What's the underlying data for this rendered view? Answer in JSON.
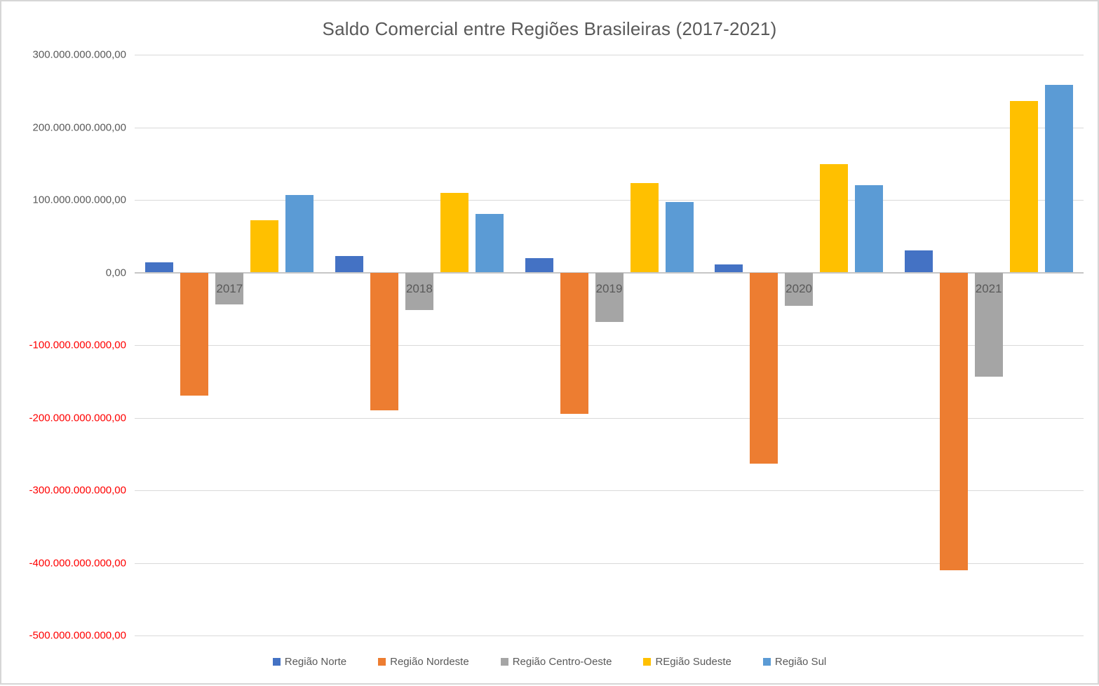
{
  "chart_data": {
    "type": "bar",
    "title": "Saldo Comercial entre Regiões Brasileiras (2017-2021)",
    "categories": [
      "2017",
      "2018",
      "2019",
      "2020",
      "2021"
    ],
    "series": [
      {
        "name": "Região Norte",
        "color": "#4472C4",
        "values": [
          14000000000,
          23000000000,
          20000000000,
          11000000000,
          30000000000
        ]
      },
      {
        "name": "Região Nordeste",
        "color": "#ED7D31",
        "values": [
          -170000000000,
          -190000000000,
          -195000000000,
          -263000000000,
          -410000000000
        ]
      },
      {
        "name": "Região Centro-Oeste",
        "color": "#A5A5A5",
        "values": [
          -44000000000,
          -52000000000,
          -68000000000,
          -46000000000,
          -143000000000
        ]
      },
      {
        "name": "REgião Sudeste",
        "color": "#FFC000",
        "values": [
          72000000000,
          110000000000,
          123000000000,
          149000000000,
          236000000000
        ]
      },
      {
        "name": "Região Sul",
        "color": "#5B9BD5",
        "values": [
          107000000000,
          81000000000,
          97000000000,
          120000000000,
          258000000000
        ]
      }
    ],
    "ylim": [
      -500000000000,
      300000000000
    ],
    "ytick_step": 100000000000,
    "ytick_labels": [
      "300.000.000.000,00",
      "200.000.000.000,00",
      "100.000.000.000,00",
      "0,00",
      "-100.000.000.000,00",
      "-200.000.000.000,00",
      "-300.000.000.000,00",
      "-400.000.000.000,00",
      "-500.000.000.000,00"
    ],
    "grid": true,
    "legend_position": "bottom",
    "axis_label_color": "#595959",
    "axis_label_negative_color": "#FF0000",
    "gridline_color": "#D9D9D9"
  }
}
